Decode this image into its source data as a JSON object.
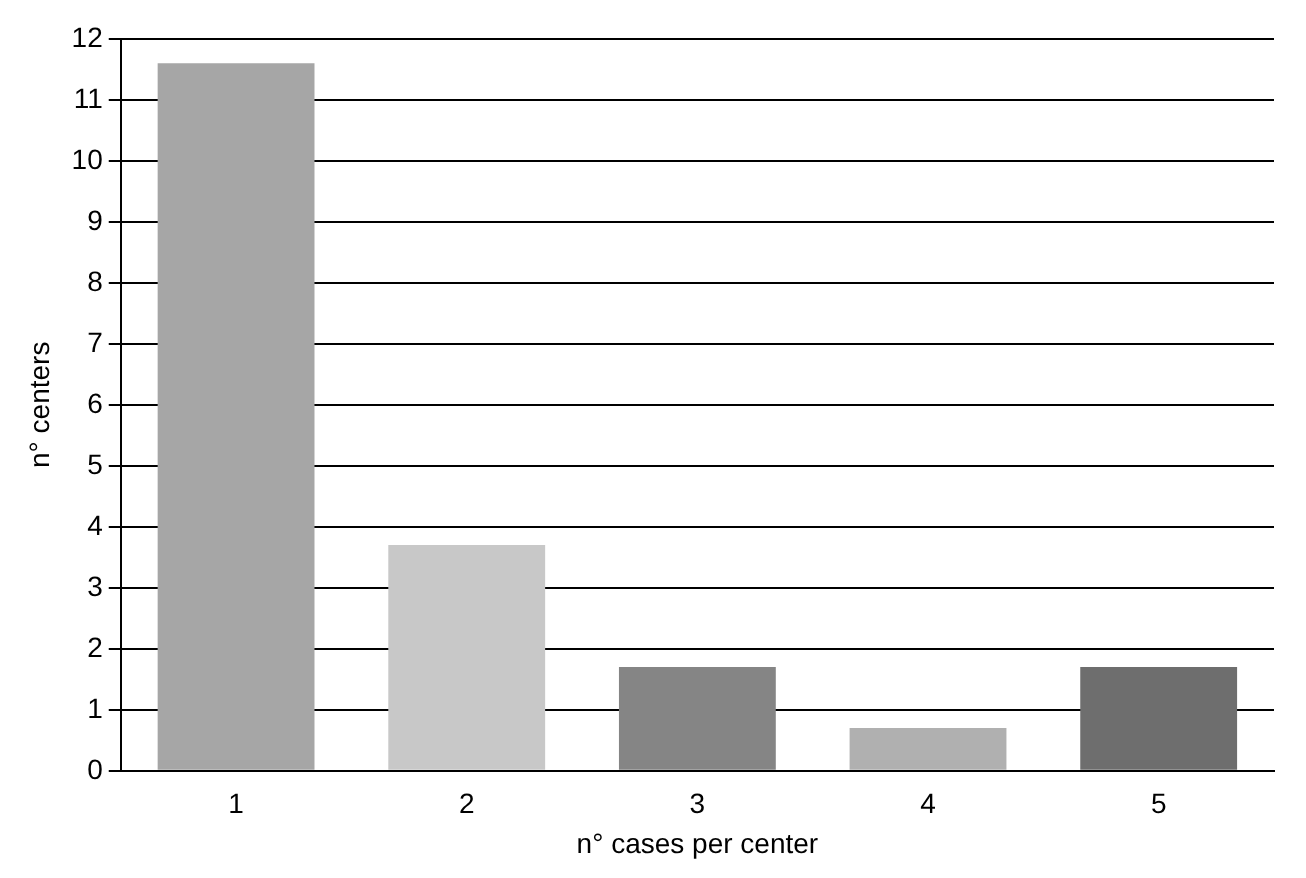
{
  "chart_data": {
    "type": "bar",
    "xlabel": "n° cases per center",
    "ylabel": "n° centers",
    "categories": [
      "1",
      "2",
      "3",
      "4",
      "5"
    ],
    "values": [
      11.6,
      3.7,
      1.7,
      0.7,
      1.7
    ],
    "colors": [
      "#a6a6a6",
      "#c8c8c8",
      "#858585",
      "#b0b0b0",
      "#6e6e6e"
    ],
    "ylim": [
      0,
      12
    ],
    "yticks": [
      0,
      1,
      2,
      3,
      4,
      5,
      6,
      7,
      8,
      9,
      10,
      11,
      12
    ],
    "grid": "y"
  }
}
